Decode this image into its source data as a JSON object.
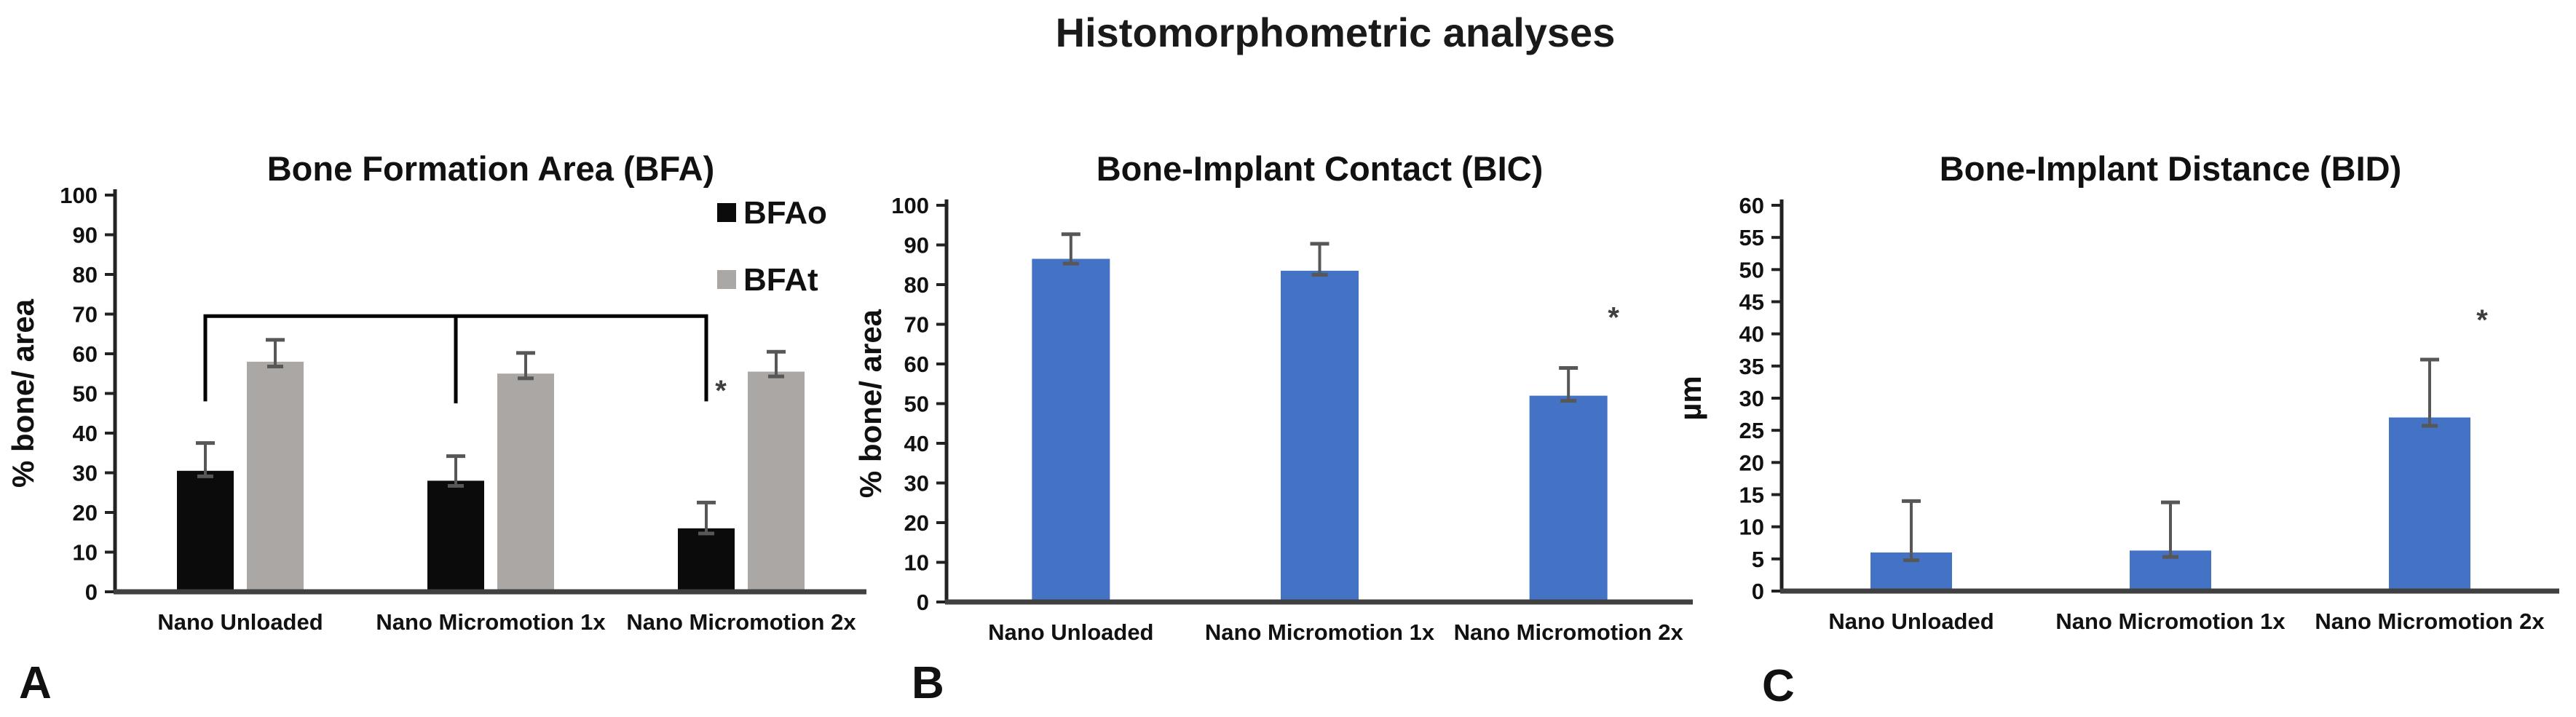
{
  "page": {
    "main_title": "Histomorphometric analyses"
  },
  "panels": [
    {
      "letter": "A"
    },
    {
      "letter": "B"
    },
    {
      "letter": "C"
    }
  ],
  "colors": {
    "bfao_black": "#0b0b0b",
    "bfat_gray": "#aaa7a4",
    "bar_blue": "#4472c4",
    "error_bar": "#575757",
    "axis": "#222222",
    "baseline": "#404040",
    "bracket": "#000000",
    "star": "#3f3f3f"
  },
  "chart_data": [
    {
      "type": "bar",
      "panel": "A",
      "title": "Bone Formation Area  (BFA)",
      "xlabel": "",
      "ylabel": "% bone/ area",
      "ylim": [
        0,
        100
      ],
      "ytick_step": 10,
      "grid": false,
      "categories": [
        "Nano Unloaded",
        "Nano Micromotion 1x",
        "Nano Micromotion 2x"
      ],
      "series": [
        {
          "name": "BFAo",
          "color": "#0b0b0b",
          "values": [
            30.5,
            28,
            16
          ],
          "err_up": [
            7,
            6.2,
            6.5
          ],
          "err_down": [
            1.4,
            1.3,
            1.3
          ]
        },
        {
          "name": "BFAt",
          "color": "#aaa7a4",
          "values": [
            58,
            55,
            55.5
          ],
          "err_up": [
            5.5,
            5.2,
            5
          ],
          "err_down": [
            1.2,
            1.2,
            1.2
          ]
        }
      ],
      "legend": {
        "position": "top-right",
        "entries": [
          "BFAo",
          "BFAt"
        ]
      },
      "significance": {
        "bracket": {
          "series": 0,
          "groups": [
            0,
            1,
            2
          ],
          "y_top": 69.5,
          "drop_left": 48,
          "drop_mid": 47.5,
          "drop_right": 48
        },
        "star": {
          "symbol": "*",
          "group": 2,
          "y": 50.5
        }
      }
    },
    {
      "type": "bar",
      "panel": "B",
      "title": "Bone-Implant Contact (BIC)",
      "xlabel": "",
      "ylabel": "% bone/ area",
      "ylim": [
        0,
        100
      ],
      "ytick_step": 10,
      "grid": false,
      "categories": [
        "Nano Unloaded",
        "Nano Micromotion 1x",
        "Nano Micromotion 2x"
      ],
      "series": [
        {
          "name": "BIC",
          "color": "#4472c4",
          "values": [
            86.5,
            83.5,
            52
          ],
          "err_up": [
            6.2,
            6.8,
            7
          ],
          "err_down": [
            1.2,
            1.0,
            1.3
          ]
        }
      ],
      "legend": null,
      "significance": {
        "star": {
          "symbol": "*",
          "group": 2,
          "y": 71.5
        }
      }
    },
    {
      "type": "bar",
      "panel": "C",
      "title": "Bone-Implant Distance (BID)",
      "xlabel": "",
      "ylabel": "µm",
      "ylim": [
        0,
        60
      ],
      "ytick_step": 5,
      "grid": false,
      "categories": [
        "Nano Unloaded",
        "Nano Micromotion 1x",
        "Nano Micromotion 2x"
      ],
      "series": [
        {
          "name": "BID",
          "color": "#4472c4",
          "values": [
            6,
            6.3,
            27
          ],
          "err_up": [
            8,
            7.5,
            9
          ],
          "err_down": [
            1.2,
            1.0,
            1.3
          ]
        }
      ],
      "legend": null,
      "significance": {
        "star": {
          "symbol": "*",
          "group": 2,
          "y": 42
        }
      }
    }
  ]
}
